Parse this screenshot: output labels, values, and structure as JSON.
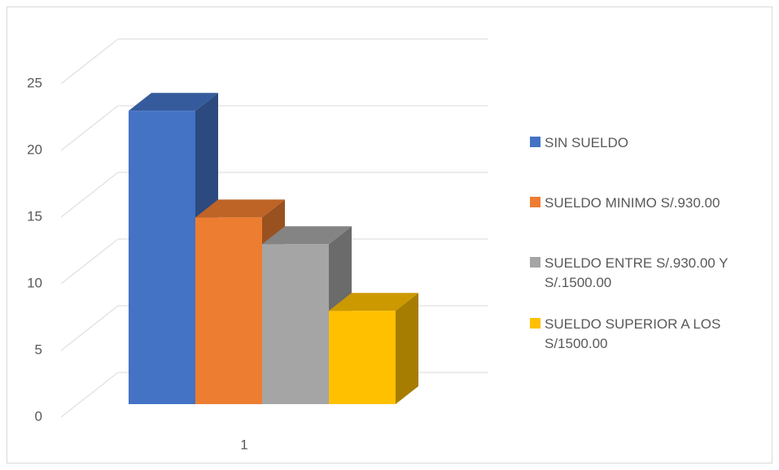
{
  "chart_data": {
    "type": "bar3d",
    "categories": [
      "1"
    ],
    "series": [
      {
        "name": "SIN SUELDO",
        "color": "#4472c4",
        "values": [
          22
        ]
      },
      {
        "name": "SUELDO MINIMO S/.930.00",
        "color": "#ed7d31",
        "values": [
          14
        ]
      },
      {
        "name": "SUELDO ENTRE S/.930.00 Y S/.1500.00",
        "color": "#a5a5a5",
        "values": [
          12
        ]
      },
      {
        "name": "SUELDO SUPERIOR A LOS S/1500.00",
        "color": "#ffc000",
        "values": [
          7
        ]
      }
    ],
    "ylim": [
      0,
      25
    ],
    "yticks": [
      0,
      5,
      10,
      15,
      20,
      25
    ],
    "grid": true,
    "legend": "right"
  }
}
